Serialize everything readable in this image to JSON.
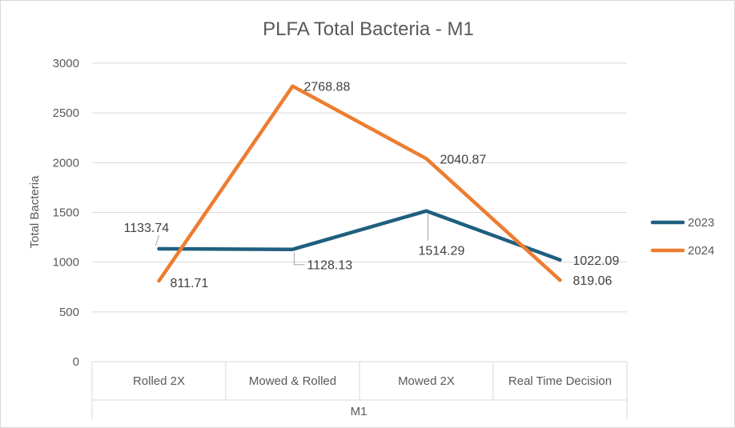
{
  "chart_data": {
    "type": "line",
    "title": "PLFA Total Bacteria - M1",
    "xlabel": "M1",
    "ylabel": "Total Bacteria",
    "categories": [
      "Rolled 2X",
      "Mowed & Rolled",
      "Mowed 2X",
      "Real Time Decision"
    ],
    "ylim": [
      0,
      3000
    ],
    "yticks": [
      0,
      500,
      1000,
      1500,
      2000,
      2500,
      3000
    ],
    "grid": true,
    "legend_position": "right",
    "series": [
      {
        "name": "2023",
        "color": "#1f5f7f",
        "values": [
          1133.74,
          1128.13,
          1514.29,
          1022.09
        ],
        "labels": [
          "1133.74",
          "1128.13",
          "1514.29",
          "1022.09"
        ]
      },
      {
        "name": "2024",
        "color": "#ed7d31",
        "values": [
          811.71,
          2768.88,
          2040.87,
          819.06
        ],
        "labels": [
          "811.71",
          "2768.88",
          "2040.87",
          "819.06"
        ]
      }
    ]
  }
}
